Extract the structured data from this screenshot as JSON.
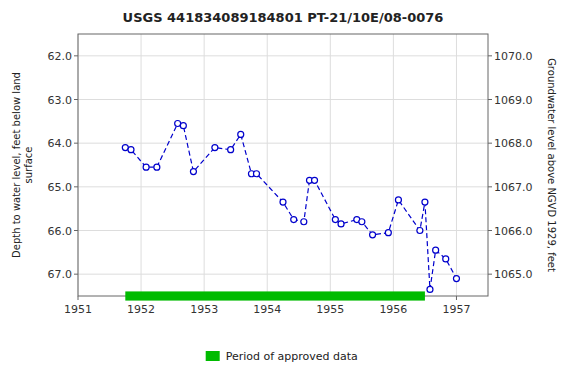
{
  "chart_data": {
    "type": "line",
    "title": "USGS 441834089184801 PT-21/10E/08-0076",
    "ylabel": "Depth to water level, feet below land\nsurface",
    "y2label": "Groundwater level above NGVD 1929, feet",
    "x": [
      1951.75,
      1951.84,
      1952.08,
      1952.25,
      1952.58,
      1952.67,
      1952.83,
      1953.17,
      1953.42,
      1953.58,
      1953.75,
      1953.83,
      1954.25,
      1954.42,
      1954.58,
      1954.67,
      1954.75,
      1955.08,
      1955.17,
      1955.42,
      1955.5,
      1955.67,
      1955.92,
      1956.08,
      1956.42,
      1956.5,
      1956.58,
      1956.67,
      1956.83,
      1957.0
    ],
    "series": [
      {
        "type": "line",
        "color": "#0000cc",
        "line_style": "dashed",
        "marker": "circle",
        "values": [
          64.1,
          64.15,
          64.55,
          64.55,
          63.55,
          63.6,
          64.65,
          64.1,
          64.15,
          63.8,
          64.7,
          64.7,
          65.35,
          65.75,
          65.8,
          64.85,
          64.85,
          65.75,
          65.85,
          65.75,
          65.8,
          66.1,
          66.05,
          65.3,
          66.0,
          65.35,
          67.35,
          66.45,
          66.65,
          67.1
        ]
      },
      {
        "type": "span",
        "name": "Period of approved data",
        "color": "#00bb00",
        "x": [
          1951.75,
          1956.5
        ]
      }
    ],
    "xlim": [
      1951,
      1957.5
    ],
    "xticks": [
      1951,
      1952,
      1953,
      1954,
      1955,
      1956,
      1957
    ],
    "ylim": [
      67.5,
      61.5
    ],
    "yticks": [
      {
        "value": 62.0,
        "label": "62.0"
      },
      {
        "value": 63.0,
        "label": "63.0"
      },
      {
        "value": 64.0,
        "label": "64.0"
      },
      {
        "value": 65.0,
        "label": "65.0"
      },
      {
        "value": 66.0,
        "label": "66.0"
      },
      {
        "value": 67.0,
        "label": "67.0"
      }
    ],
    "y2lim": [
      1064.5,
      1070.5
    ],
    "y2ticks": [
      {
        "value": 1070.0,
        "label": "1070.0"
      },
      {
        "value": 1069.0,
        "label": "1069.0"
      },
      {
        "value": 1068.0,
        "label": "1068.0"
      },
      {
        "value": 1067.0,
        "label": "1067.0"
      },
      {
        "value": 1066.0,
        "label": "1066.0"
      },
      {
        "value": 1065.0,
        "label": "1065.0"
      }
    ],
    "grid": true,
    "legend": "bottom"
  }
}
